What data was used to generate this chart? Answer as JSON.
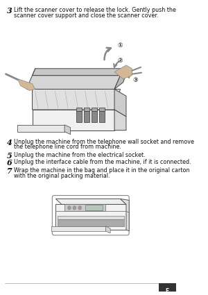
{
  "bg_color": "#ffffff",
  "step3_num": "3",
  "step3_text_line1": "Lift the scanner cover to release the lock. Gently push the",
  "step3_text_line2": "scanner cover support and close the scanner cover.",
  "step4_num": "4",
  "step4_text_line1": "Unplug the machine from the telephone wall socket and remove",
  "step4_text_line2": "the telephone line cord from machine.",
  "step5_num": "5",
  "step5_text": "Unplug the machine from the electrical socket.",
  "step6_num": "6",
  "step6_text": "Unplug the interface cable from the machine, if it is connected.",
  "step7_num": "7",
  "step7_text_line1": "Wrap the machine in the bag and place it in the original carton",
  "step7_text_line2": "with the original packing material.",
  "text_color": "#111111",
  "num_color": "#111111",
  "page_num": "E",
  "fig_width": 3.0,
  "fig_height": 4.25,
  "dpi": 100
}
